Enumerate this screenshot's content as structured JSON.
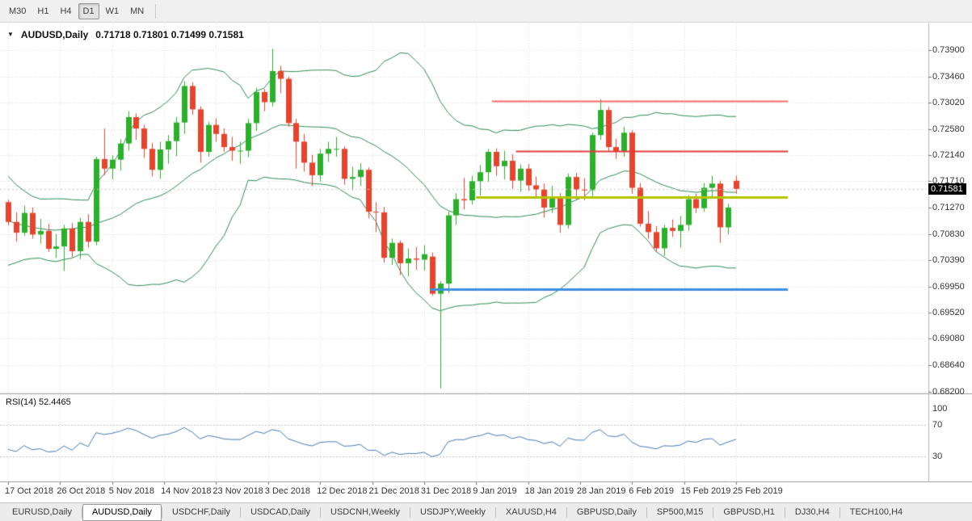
{
  "toolbar": {
    "timeframes": [
      {
        "label": "M30",
        "active": false
      },
      {
        "label": "H1",
        "active": false
      },
      {
        "label": "H4",
        "active": false
      },
      {
        "label": "D1",
        "active": true
      },
      {
        "label": "W1",
        "active": false
      },
      {
        "label": "MN",
        "active": false
      }
    ]
  },
  "chart": {
    "title_symbol": "AUDUSD,Daily",
    "title_ohlc": "0.71718 0.71801 0.71499 0.71581",
    "price_badge": "0.71581",
    "price_axis": [
      "0.73900",
      "0.73460",
      "0.73020",
      "0.72580",
      "0.72140",
      "0.71710",
      "0.71270",
      "0.70830",
      "0.70390",
      "0.69950",
      "0.69520",
      "0.69080",
      "0.68640",
      "0.68200"
    ],
    "date_labels": [
      "17 Oct 2018",
      "26 Oct 2018",
      "5 Nov 2018",
      "14 Nov 2018",
      "23 Nov 2018",
      "3 Dec 2018",
      "12 Dec 2018",
      "21 Dec 2018",
      "31 Dec 2018",
      "9 Jan 2019",
      "18 Jan 2019",
      "28 Jan 2019",
      "6 Feb 2019",
      "15 Feb 2019",
      "25 Feb 2019"
    ],
    "colors": {
      "up": "#2ab02a",
      "down": "#e8432c",
      "bollinger": "#2e8b57",
      "grid": "#dcdcdc",
      "rsi_line": "#4a7ab5",
      "hline_red_upper": "#fa6b6b",
      "hline_red_lower": "#e33b3b",
      "hline_yellow": "#b5c400",
      "hline_blue": "#3e8ede"
    }
  },
  "rsi": {
    "label": "RSI(14) 52.4465",
    "levels": [
      "100",
      "70",
      "30"
    ]
  },
  "tabs": [
    {
      "label": "EURUSD,Daily",
      "active": false
    },
    {
      "label": "AUDUSD,Daily",
      "active": true
    },
    {
      "label": "USDCHF,Daily",
      "active": false
    },
    {
      "label": "USDCAD,Daily",
      "active": false
    },
    {
      "label": "USDCNH,Weekly",
      "active": false
    },
    {
      "label": "USDJPY,Weekly",
      "active": false
    },
    {
      "label": "XAUUSD,H4",
      "active": false
    },
    {
      "label": "GBPUSD,Daily",
      "active": false
    },
    {
      "label": "SP500,M15",
      "active": false
    },
    {
      "label": "GBPUSD,H1",
      "active": false
    },
    {
      "label": "DJ30,H4",
      "active": false
    },
    {
      "label": "TECH100,H4",
      "active": false
    }
  ],
  "chart_data": {
    "type": "candlestick",
    "symbol": "AUDUSD",
    "timeframe": "Daily",
    "current_price": 0.71581,
    "ylim": [
      0.682,
      0.739
    ],
    "last_candle_ohlc": {
      "open": 0.71718,
      "high": 0.71801,
      "low": 0.71499,
      "close": 0.71581
    },
    "x_range": [
      "17 Oct 2018",
      "25 Feb 2019"
    ],
    "pre_closes": [
      0.7185,
      0.717,
      0.7152,
      0.713,
      0.7098,
      0.7076,
      0.7058,
      0.7044,
      0.7052,
      0.7068,
      0.7082,
      0.7104,
      0.712,
      0.7108,
      0.7094,
      0.708,
      0.7112,
      0.7126,
      0.714
    ],
    "ohlc": [
      [
        0.7136,
        0.714,
        0.7097,
        0.7103
      ],
      [
        0.7103,
        0.7119,
        0.707,
        0.7085
      ],
      [
        0.7085,
        0.713,
        0.708,
        0.7118
      ],
      [
        0.7118,
        0.7127,
        0.7075,
        0.7082
      ],
      [
        0.7082,
        0.7108,
        0.7067,
        0.7088
      ],
      [
        0.7088,
        0.71,
        0.7053,
        0.7058
      ],
      [
        0.7058,
        0.7083,
        0.7043,
        0.7062
      ],
      [
        0.7062,
        0.7098,
        0.7021,
        0.7092
      ],
      [
        0.7092,
        0.7101,
        0.7044,
        0.7054
      ],
      [
        0.7054,
        0.711,
        0.7041,
        0.7103
      ],
      [
        0.7103,
        0.7116,
        0.706,
        0.707
      ],
      [
        0.707,
        0.7212,
        0.7064,
        0.7208
      ],
      [
        0.7208,
        0.7259,
        0.7181,
        0.7192
      ],
      [
        0.7192,
        0.7214,
        0.7174,
        0.7207
      ],
      [
        0.7207,
        0.7241,
        0.7189,
        0.7234
      ],
      [
        0.7234,
        0.7288,
        0.7222,
        0.7278
      ],
      [
        0.7278,
        0.7284,
        0.724,
        0.7259
      ],
      [
        0.7259,
        0.7265,
        0.721,
        0.7225
      ],
      [
        0.7225,
        0.7235,
        0.7179,
        0.719
      ],
      [
        0.719,
        0.7237,
        0.7175,
        0.7224
      ],
      [
        0.7224,
        0.7248,
        0.72,
        0.7238
      ],
      [
        0.7238,
        0.7278,
        0.7213,
        0.7269
      ],
      [
        0.7269,
        0.7338,
        0.725,
        0.733
      ],
      [
        0.733,
        0.7336,
        0.7282,
        0.7291
      ],
      [
        0.7291,
        0.7296,
        0.7202,
        0.722
      ],
      [
        0.722,
        0.727,
        0.7212,
        0.7265
      ],
      [
        0.7265,
        0.7276,
        0.7237,
        0.725
      ],
      [
        0.725,
        0.7259,
        0.722,
        0.7228
      ],
      [
        0.7228,
        0.7245,
        0.7205,
        0.7222
      ],
      [
        0.7222,
        0.7237,
        0.72,
        0.7222
      ],
      [
        0.7222,
        0.7275,
        0.7211,
        0.7268
      ],
      [
        0.7268,
        0.7327,
        0.7255,
        0.732
      ],
      [
        0.732,
        0.7325,
        0.7288,
        0.7303
      ],
      [
        0.7303,
        0.7392,
        0.7296,
        0.7355
      ],
      [
        0.7355,
        0.7364,
        0.7318,
        0.7342
      ],
      [
        0.7342,
        0.7346,
        0.7262,
        0.7268
      ],
      [
        0.7268,
        0.7275,
        0.7192,
        0.7237
      ],
      [
        0.7237,
        0.725,
        0.7187,
        0.7202
      ],
      [
        0.7202,
        0.7215,
        0.7163,
        0.7181
      ],
      [
        0.7181,
        0.7225,
        0.717,
        0.7217
      ],
      [
        0.7217,
        0.7237,
        0.7203,
        0.7225
      ],
      [
        0.7225,
        0.7245,
        0.7212,
        0.7225
      ],
      [
        0.7225,
        0.7229,
        0.7165,
        0.7175
      ],
      [
        0.7175,
        0.7195,
        0.7156,
        0.7178
      ],
      [
        0.7178,
        0.7201,
        0.7163,
        0.719
      ],
      [
        0.719,
        0.7194,
        0.7109,
        0.712
      ],
      [
        0.712,
        0.7136,
        0.7086,
        0.7119
      ],
      [
        0.7119,
        0.7128,
        0.7035,
        0.7043
      ],
      [
        0.7043,
        0.7075,
        0.7031,
        0.7068
      ],
      [
        0.7068,
        0.7072,
        0.7014,
        0.7034
      ],
      [
        0.7034,
        0.7059,
        0.7012,
        0.7042
      ],
      [
        0.7042,
        0.7061,
        0.7023,
        0.704
      ],
      [
        0.704,
        0.7064,
        0.7022,
        0.7049
      ],
      [
        0.7045,
        0.7052,
        0.698,
        0.6983
      ],
      [
        0.6983,
        0.7004,
        0.6825,
        0.7
      ],
      [
        0.7,
        0.712,
        0.6984,
        0.7114
      ],
      [
        0.7114,
        0.7151,
        0.7098,
        0.7141
      ],
      [
        0.7141,
        0.7176,
        0.7124,
        0.7139
      ],
      [
        0.7139,
        0.718,
        0.7132,
        0.7171
      ],
      [
        0.7171,
        0.7198,
        0.7147,
        0.7186
      ],
      [
        0.7186,
        0.7225,
        0.717,
        0.722
      ],
      [
        0.722,
        0.7226,
        0.718,
        0.7196
      ],
      [
        0.7196,
        0.7222,
        0.7174,
        0.7205
      ],
      [
        0.7205,
        0.7216,
        0.7158,
        0.7172
      ],
      [
        0.7172,
        0.7199,
        0.7153,
        0.7192
      ],
      [
        0.7192,
        0.72,
        0.7155,
        0.7164
      ],
      [
        0.7164,
        0.7179,
        0.7144,
        0.7157
      ],
      [
        0.7157,
        0.7167,
        0.711,
        0.7127
      ],
      [
        0.7127,
        0.7163,
        0.7118,
        0.7143
      ],
      [
        0.7143,
        0.7151,
        0.7085,
        0.7098
      ],
      [
        0.7098,
        0.7184,
        0.7092,
        0.7178
      ],
      [
        0.7178,
        0.7185,
        0.714,
        0.7157
      ],
      [
        0.7157,
        0.7176,
        0.7139,
        0.7156
      ],
      [
        0.7156,
        0.7252,
        0.7146,
        0.7248
      ],
      [
        0.7248,
        0.7308,
        0.724,
        0.729
      ],
      [
        0.729,
        0.7295,
        0.7222,
        0.7228
      ],
      [
        0.7228,
        0.7242,
        0.7208,
        0.722
      ],
      [
        0.722,
        0.7262,
        0.7212,
        0.7252
      ],
      [
        0.7252,
        0.7256,
        0.715,
        0.716
      ],
      [
        0.716,
        0.7168,
        0.7095,
        0.71
      ],
      [
        0.71,
        0.7121,
        0.7075,
        0.7086
      ],
      [
        0.7086,
        0.7096,
        0.7053,
        0.7059
      ],
      [
        0.7059,
        0.7098,
        0.7046,
        0.7093
      ],
      [
        0.7093,
        0.7107,
        0.7078,
        0.7088
      ],
      [
        0.7088,
        0.7113,
        0.706,
        0.7098
      ],
      [
        0.7098,
        0.7148,
        0.7088,
        0.7141
      ],
      [
        0.7141,
        0.715,
        0.7118,
        0.7126
      ],
      [
        0.7126,
        0.7168,
        0.712,
        0.716
      ],
      [
        0.716,
        0.718,
        0.7142,
        0.7167
      ],
      [
        0.7167,
        0.7172,
        0.7068,
        0.7094
      ],
      [
        0.7094,
        0.7133,
        0.7082,
        0.7127
      ],
      [
        0.71718,
        0.71801,
        0.71499,
        0.71581
      ]
    ],
    "indicators": {
      "bollinger": {
        "period": 20,
        "deviation": 2
      },
      "rsi": {
        "period": 14,
        "current": 52.4465
      }
    },
    "hlines": [
      {
        "name": "resistance-upper",
        "price": 0.7305,
        "color_key": "hline_red_upper",
        "width": 2,
        "from_index": 60.5,
        "to_index": 97.5
      },
      {
        "name": "resistance-lower",
        "price": 0.7221,
        "color_key": "hline_red_lower",
        "width": 2,
        "from_index": 63.5,
        "to_index": 97.5
      },
      {
        "name": "neckline-yellow",
        "price": 0.7144,
        "color_key": "hline_yellow",
        "width": 3,
        "from_index": 58.5,
        "to_index": 97.5
      },
      {
        "name": "support-blue",
        "price": 0.6991,
        "color_key": "hline_blue",
        "width": 3,
        "from_index": 52.8,
        "to_index": 97.5
      }
    ]
  }
}
